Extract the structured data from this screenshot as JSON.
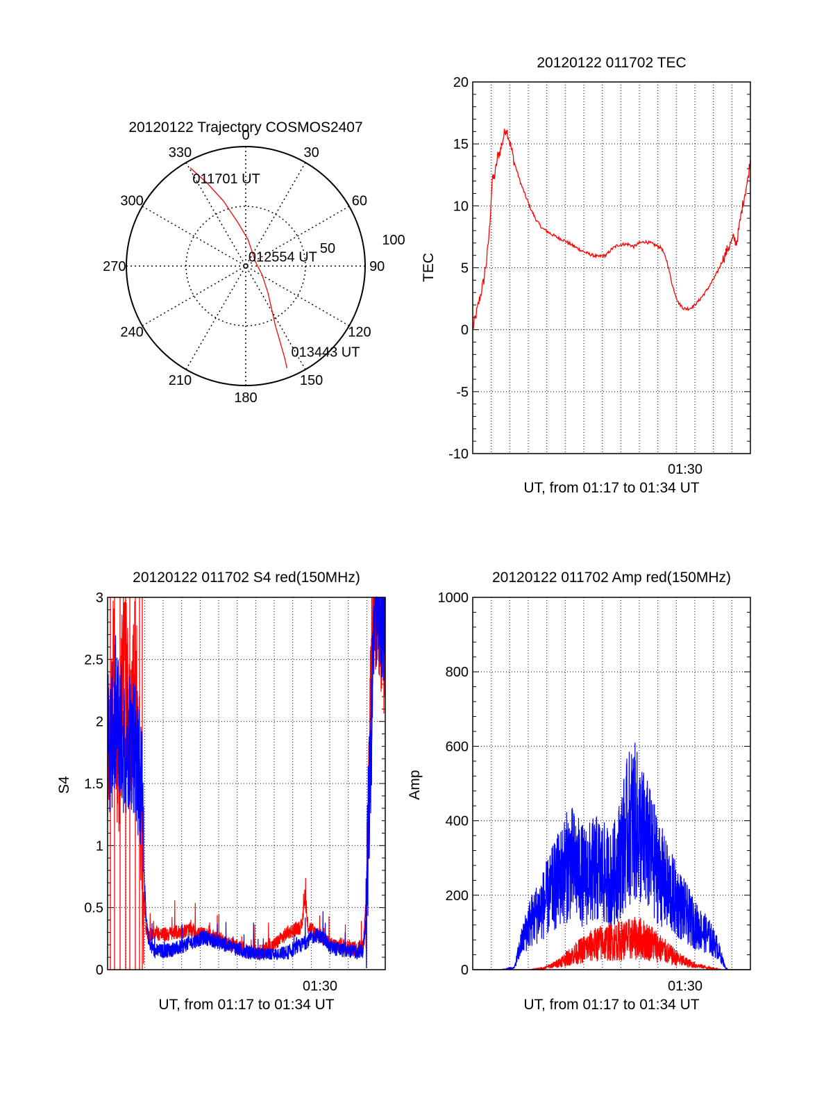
{
  "colors": {
    "red_channel": "#ff0000",
    "blue_channel": "#0000ff",
    "axis": "#000000"
  },
  "chart_data": [
    {
      "id": "polar",
      "type": "polar-trajectory",
      "title": "20120122 Trajectory COSMOS2407",
      "angle_labels": [
        "0",
        "30",
        "60",
        "90",
        "120",
        "150",
        "180",
        "210",
        "240",
        "270",
        "300",
        "330"
      ],
      "radius_labels": [
        "50",
        "100"
      ],
      "r_max": 100,
      "grid": true,
      "trajectory": {
        "color": "#ff0000",
        "points_az_el": [
          [
            330.5,
            5
          ],
          [
            335,
            21
          ],
          [
            341,
            38
          ],
          [
            350,
            57
          ],
          [
            5,
            70
          ],
          [
            70,
            82
          ],
          [
            118,
            76
          ],
          [
            140,
            64
          ],
          [
            149,
            52
          ],
          [
            153.5,
            40
          ],
          [
            155.5,
            28
          ],
          [
            157,
            15
          ],
          [
            158,
            7
          ]
        ]
      },
      "annotations": [
        {
          "text": "011701 UT",
          "az": 347.5,
          "r": 75
        },
        {
          "text": "012554 UT",
          "az": 76,
          "r": 32
        },
        {
          "text": "013443 UT",
          "az": 137,
          "r": 98
        }
      ]
    },
    {
      "id": "tec",
      "type": "line",
      "title": "20120122 011702 TEC",
      "xlabel": "UT, from 01:17 to 01:34 UT",
      "ylabel": "TEC",
      "x_tick_label": "01:30",
      "x_tick_value": 0.765,
      "ylim": [
        -10,
        20
      ],
      "yticks": [
        "20",
        "15",
        "10",
        "5",
        "0",
        "-5",
        "-10"
      ],
      "grid": true,
      "series": [
        {
          "color": "#ff0000",
          "x": [
            0.0,
            0.01,
            0.02,
            0.03,
            0.04,
            0.045,
            0.05,
            0.06,
            0.07,
            0.08,
            0.09,
            0.1,
            0.11,
            0.12,
            0.13,
            0.15,
            0.17,
            0.19,
            0.21,
            0.23,
            0.25,
            0.27,
            0.3,
            0.33,
            0.36,
            0.39,
            0.42,
            0.45,
            0.48,
            0.5,
            0.52,
            0.54,
            0.56,
            0.58,
            0.6,
            0.62,
            0.64,
            0.66,
            0.68,
            0.7,
            0.72,
            0.74,
            0.76,
            0.78,
            0.8,
            0.82,
            0.84,
            0.86,
            0.88,
            0.9,
            0.92,
            0.94,
            0.95,
            0.96,
            0.97,
            0.98,
            0.99,
            1.0
          ],
          "values": [
            0,
            1,
            2,
            3,
            4,
            5,
            5.5,
            8,
            12,
            12.5,
            14,
            14.5,
            15.5,
            16.3,
            15.5,
            13.5,
            12,
            10.8,
            9.7,
            8.8,
            8.2,
            7.9,
            7.5,
            7.2,
            6.8,
            6.4,
            6.1,
            5.9,
            6.0,
            6.5,
            6.8,
            6.9,
            6.9,
            6.7,
            7.0,
            7.1,
            7.0,
            6.8,
            6.6,
            5.5,
            3.5,
            2.2,
            1.7,
            1.7,
            2.0,
            2.5,
            3.1,
            3.8,
            4.6,
            5.6,
            6.6,
            7.4,
            7.0,
            8.3,
            9.8,
            11,
            12,
            13.8
          ]
        }
      ]
    },
    {
      "id": "s4",
      "type": "line",
      "title": "20120122 011702 S4 red(150MHz)",
      "xlabel": "UT, from 01:17 to 01:34 UT",
      "ylabel": "S4",
      "x_tick_label": "01:30",
      "x_tick_value": 0.765,
      "ylim": [
        0,
        3
      ],
      "yticks": [
        "3",
        "2.5",
        "2",
        "1.5",
        "1",
        "0.5",
        "0"
      ],
      "grid": true,
      "series": [
        {
          "color": "#0000ff",
          "x": [
            0.0,
            0.02,
            0.04,
            0.06,
            0.08,
            0.1,
            0.12,
            0.13,
            0.14,
            0.15,
            0.17,
            0.2,
            0.25,
            0.3,
            0.35,
            0.4,
            0.45,
            0.5,
            0.55,
            0.6,
            0.65,
            0.7,
            0.75,
            0.78,
            0.8,
            0.84,
            0.88,
            0.9,
            0.92,
            0.93,
            0.94,
            0.95,
            0.96,
            0.98,
            1.0
          ],
          "values": [
            1.8,
            1.9,
            2.0,
            1.8,
            1.9,
            1.8,
            1.5,
            0.8,
            0.4,
            0.2,
            0.15,
            0.15,
            0.17,
            0.22,
            0.26,
            0.22,
            0.18,
            0.14,
            0.12,
            0.11,
            0.14,
            0.2,
            0.28,
            0.25,
            0.18,
            0.16,
            0.15,
            0.13,
            0.15,
            0.4,
            1.2,
            2.0,
            2.8,
            3.0,
            2.7
          ]
        },
        {
          "color": "#ff0000",
          "x": [
            0.0,
            0.02,
            0.04,
            0.06,
            0.08,
            0.1,
            0.12,
            0.13,
            0.14,
            0.15,
            0.17,
            0.2,
            0.25,
            0.3,
            0.35,
            0.4,
            0.45,
            0.5,
            0.55,
            0.6,
            0.65,
            0.7,
            0.71,
            0.72,
            0.75,
            0.78,
            0.8,
            0.84,
            0.88,
            0.9,
            0.92,
            0.93,
            0.94,
            0.95,
            0.96,
            0.98,
            1.0
          ],
          "values": [
            1.5,
            2.5,
            1.5,
            2.8,
            1.8,
            2.5,
            1.2,
            0.6,
            0.3,
            0.25,
            0.3,
            0.28,
            0.3,
            0.32,
            0.28,
            0.25,
            0.2,
            0.15,
            0.14,
            0.2,
            0.3,
            0.35,
            0.6,
            0.35,
            0.3,
            0.25,
            0.2,
            0.2,
            0.18,
            0.16,
            0.2,
            0.5,
            1.5,
            2.5,
            3.0,
            2.9,
            2.5
          ]
        }
      ]
    },
    {
      "id": "amp",
      "type": "line",
      "title": "20120122 011702 Amp red(150MHz)",
      "xlabel": "UT, from 01:17 to 01:34 UT",
      "ylabel": "Amp",
      "x_tick_label": "01:30",
      "x_tick_value": 0.765,
      "ylim": [
        0,
        1000
      ],
      "yticks": [
        "1000",
        "800",
        "600",
        "400",
        "200",
        "0"
      ],
      "grid": true,
      "series": [
        {
          "color": "#0000ff",
          "x": [
            0.0,
            0.1,
            0.15,
            0.17,
            0.2,
            0.25,
            0.3,
            0.35,
            0.4,
            0.45,
            0.5,
            0.53,
            0.56,
            0.58,
            0.6,
            0.63,
            0.66,
            0.7,
            0.75,
            0.8,
            0.85,
            0.88,
            0.9,
            0.91,
            0.92,
            1.0
          ],
          "values": [
            0,
            0,
            5,
            60,
            120,
            170,
            230,
            290,
            250,
            270,
            240,
            300,
            380,
            400,
            370,
            330,
            280,
            220,
            170,
            120,
            90,
            60,
            25,
            5,
            0,
            0
          ]
        },
        {
          "color": "#ff0000",
          "x": [
            0.0,
            0.2,
            0.25,
            0.3,
            0.35,
            0.4,
            0.45,
            0.5,
            0.55,
            0.6,
            0.65,
            0.7,
            0.75,
            0.8,
            0.85,
            0.9,
            1.0
          ],
          "values": [
            0,
            0,
            3,
            15,
            35,
            55,
            70,
            75,
            80,
            85,
            70,
            45,
            25,
            12,
            5,
            0,
            0
          ]
        }
      ]
    }
  ]
}
